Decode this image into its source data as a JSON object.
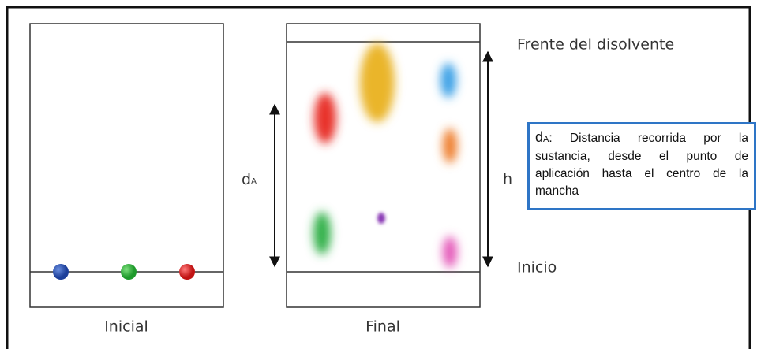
{
  "panels": {
    "initial": {
      "label": "Inicial"
    },
    "final": {
      "label": "Final"
    }
  },
  "labels": {
    "solvent_front": "Frente del disolvente",
    "origin": "Inicio",
    "d_symbol": "d",
    "d_subscript": "A",
    "h": "h"
  },
  "note": {
    "symbol": "d",
    "subscript": "A",
    "text": ": Distancia recorrida por la sustancia, desde el punto de aplicación hasta el centro de la mancha"
  }
}
